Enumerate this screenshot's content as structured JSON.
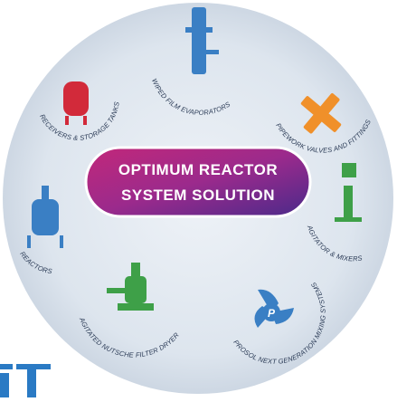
{
  "center": {
    "line1": "OPTIMUM REACTOR",
    "line2": "SYSTEM SOLUTION"
  },
  "segments": [
    {
      "label": "WIPED FILM EVAPORATORS"
    },
    {
      "label": "PIPEWORK VALVES AND FITTINGS"
    },
    {
      "label": "AGITATOR & MIXERS"
    },
    {
      "label": "PROSOL NEXT GENERATION MIXING SYSTEMS"
    },
    {
      "label": "AGITATED NUTSCHE FILTER DRYER"
    },
    {
      "label": "REACTORS"
    },
    {
      "label": "RECEIVERS & STORAGE TANKS"
    }
  ]
}
